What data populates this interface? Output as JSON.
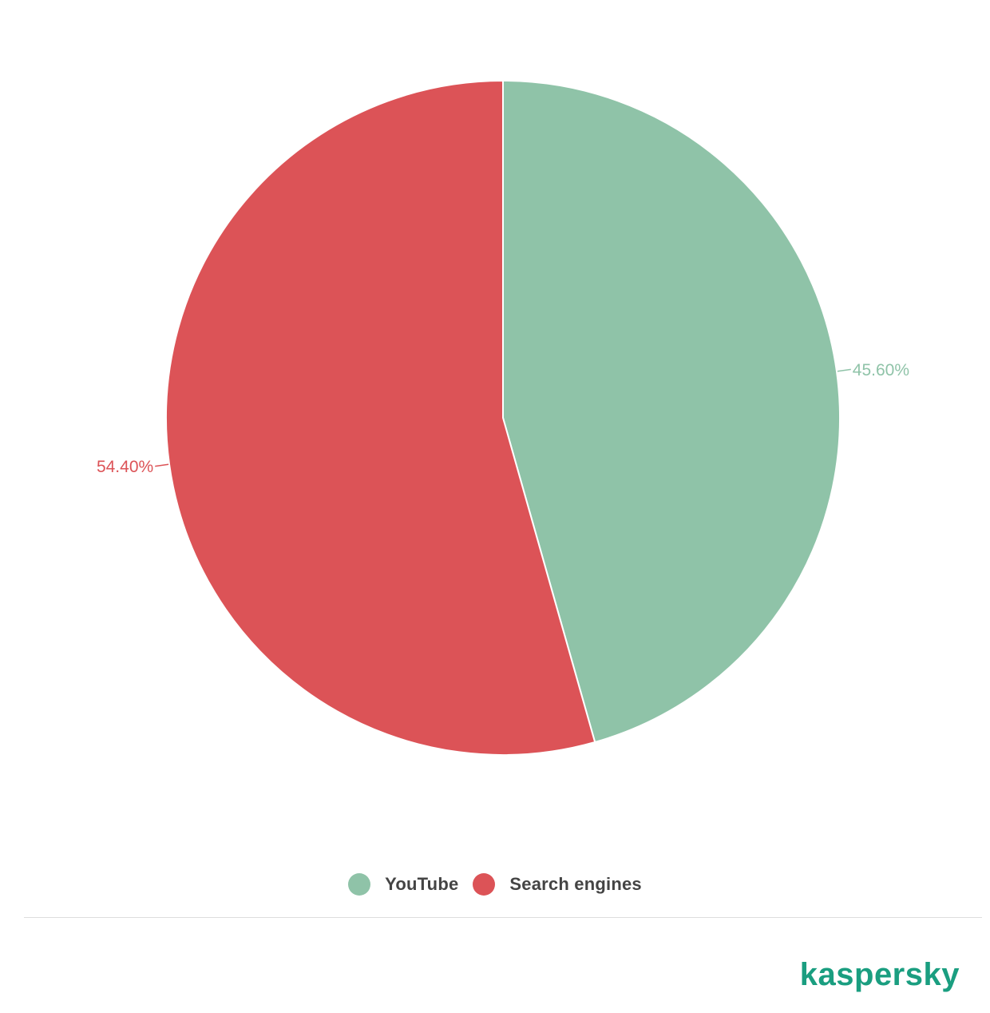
{
  "chart_data": {
    "type": "pie",
    "categories": [
      "YouTube",
      "Search engines"
    ],
    "values": [
      45.6,
      54.4
    ],
    "labels": [
      "45.60%",
      "54.40%"
    ],
    "colors": [
      "#8fc3a8",
      "#dc5357"
    ],
    "legend_position": "bottom-center",
    "start_angle": "12 o'clock, clockwise"
  },
  "legend": {
    "items": [
      {
        "label": "YouTube",
        "color": "#8fc3a8"
      },
      {
        "label": "Search engines",
        "color": "#dc5357"
      }
    ]
  },
  "brand": {
    "logo_text": "kaspersky",
    "color": "#1a9e80"
  }
}
